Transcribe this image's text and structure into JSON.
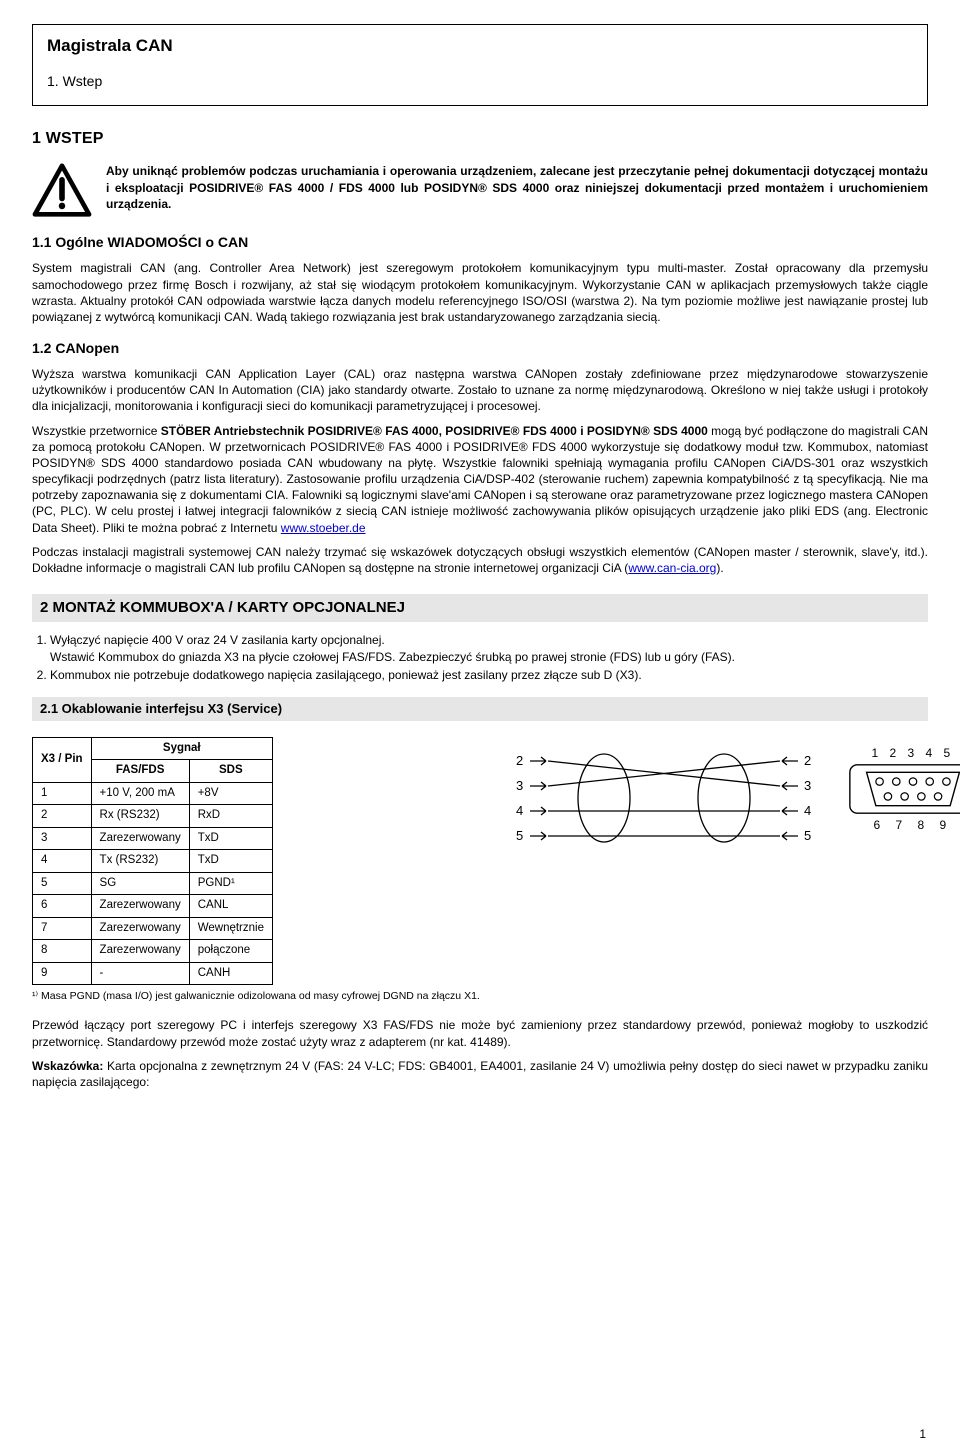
{
  "header": {
    "title": "Magistrala CAN",
    "sub": "1. Wstep"
  },
  "sec1": {
    "heading": "1   WSTEP",
    "warning": "Aby uniknąć problemów podczas uruchamiania i operowania urządzeniem, zalecane jest przeczytanie pełnej dokumentacji dotyczącej montażu i eksploatacji POSIDRIVE® FAS 4000 / FDS 4000 lub POSIDYN® SDS 4000 oraz niniejszej dokumentacji przed montażem i uruchomieniem urządzenia.",
    "h11": "1.1 Ogólne WIADOMOŚCI o CAN",
    "p11": "System magistrali CAN (ang. Controller Area Network) jest szeregowym protokołem komunikacyjnym typu multi-master. Został opracowany dla przemysłu samochodowego przez firmę Bosch i rozwijany, aż stał się wiodącym protokołem komunikacyjnym. Wykorzystanie CAN w aplikacjach przemysłowych także ciągle wzrasta. Aktualny protokół CAN odpowiada warstwie łącza danych modelu referencyjnego ISO/OSI (warstwa 2). Na tym poziomie możliwe jest nawiązanie prostej lub powiązanej z wytwórcą komunikacji CAN. Wadą takiego rozwiązania jest brak ustandaryzowanego zarządzania siecią.",
    "h12": "1.2 CANopen",
    "p12a": "Wyższa warstwa komunikacji CAN Application Layer (CAL) oraz następna warstwa CANopen zostały zdefiniowane przez międzynarodowe stowarzyszenie użytkowników i producentów CAN In Automation (CIA) jako standardy otwarte. Zostało to uznane za normę międzynarodową. Określono w niej także usługi i protokoły dla inicjalizacji, monitorowania i konfiguracji sieci do komunikacji parametryzującej i procesowej.",
    "p12b_pre": "Wszystkie przetwornice ",
    "p12b_bold": "STÖBER Antriebstechnik POSIDRIVE® FAS 4000, POSIDRIVE® FDS 4000 i POSIDYN® SDS 4000",
    "p12b_rest": " mogą być podłączone do magistrali CAN za pomocą protokołu CANopen. W przetwornicach POSIDRIVE® FAS 4000 i POSIDRIVE® FDS 4000 wykorzystuje się dodatkowy moduł tzw. Kommubox, natomiast POSIDYN® SDS 4000 standardowo posiada CAN wbudowany na płytę. Wszystkie falowniki spełniają wymagania profilu CANopen CiA/DS-301 oraz wszystkich specyfikacji podrzędnych (patrz lista literatury). Zastosowanie profilu urządzenia CiA/DSP-402 (sterowanie ruchem) zapewnia kompatybilność z tą specyfikacją. Nie ma potrzeby zapoznawania się z dokumentami CIA. Falowniki są logicznymi slave'ami CANopen i są sterowane oraz parametryzowane przez logicznego mastera CANopen (PC, PLC). W celu prostej i łatwej integracji falowników z siecią CAN istnieje możliwość zachowywania plików opisujących urządzenie jako pliki EDS (ang. Electronic Data Sheet). Pliki te można pobrać z Internetu ",
    "link1": "www.stoeber.de",
    "p12c_pre": "Podczas instalacji magistrali systemowej CAN należy trzymać się wskazówek dotyczących obsługi wszystkich elementów (CANopen master / sterownik, slave'y, itd.). Dokładne informacje o magistrali CAN lub profilu CANopen są dostępne na stronie internetowej organizacji CiA (",
    "link2": "www.can-cia.org",
    "p12c_post": ")."
  },
  "sec2": {
    "bar": "2   MONTAŻ KOMMUBOX'A / KARTY OPCJONALNEJ",
    "li1": "Wyłączyć napięcie 400 V oraz 24 V zasilania karty opcjonalnej.",
    "li1b": "Wstawić Kommubox do gniazda X3 na płycie czołowej FAS/FDS. Zabezpieczyć śrubką po prawej stronie (FDS) lub u góry (FAS).",
    "li2": "Kommubox nie potrzebuje dodatkowego napięcia zasilającego, ponieważ jest zasilany przez złącze sub D (X3).",
    "sub": "2.1 Okablowanie interfejsu X3 (Service)",
    "table": {
      "head_pin": "X3 / Pin",
      "head_sig": "Sygnał",
      "head_fas": "FAS/FDS",
      "head_sds": "SDS",
      "rows": [
        {
          "pin": "1",
          "fas": "+10 V, 200 mA",
          "sds": "+8V"
        },
        {
          "pin": "2",
          "fas": "Rx (RS232)",
          "sds": "RxD"
        },
        {
          "pin": "3",
          "fas": "Zarezerwowany",
          "sds": "TxD"
        },
        {
          "pin": "4",
          "fas": "Tx (RS232)",
          "sds": "TxD"
        },
        {
          "pin": "5",
          "fas": "SG",
          "sds": "PGND¹"
        },
        {
          "pin": "6",
          "fas": "Zarezerwowany",
          "sds": "CANL"
        },
        {
          "pin": "7",
          "fas": "Zarezerwowany",
          "sds": "Wewnętrznie"
        },
        {
          "pin": "8",
          "fas": "Zarezerwowany",
          "sds": "połączone"
        },
        {
          "pin": "9",
          "fas": "-",
          "sds": "CANH"
        }
      ]
    },
    "foot": "¹⁾  Masa PGND (masa I/O) jest galwanicznie odizolowana od masy cyfrowej DGND na złączu X1.",
    "p_end1": "Przewód łączący port szeregowy PC i interfejs szeregowy X3 FAS/FDS nie może być zamieniony przez standardowy przewód, ponieważ mogłoby to uszkodzić przetwornicę. Standardowy przewód może zostać użyty wraz z adapterem (nr kat. 41489).",
    "p_end2_label": "Wskazówka:",
    "p_end2": " Karta opcjonalna z zewnętrznym 24 V (FAS: 24 V-LC; FDS: GB4001, EA4001, zasilanie 24 V) umożliwia pełny dostęp do sieci nawet w przypadku zaniku napięcia zasilającego:"
  },
  "cable": {
    "labels_left": [
      "2",
      "3",
      "4",
      "5"
    ],
    "labels_right": [
      "2",
      "3",
      "4",
      "5"
    ]
  },
  "connector": {
    "top": "1 2 3 4 5",
    "bottom": "6 7 8 9"
  },
  "colors": {
    "text": "#000000",
    "bg": "#ffffff",
    "bar_bg": "#e6e6e6",
    "link": "#0000cc"
  },
  "pagenum": "1"
}
